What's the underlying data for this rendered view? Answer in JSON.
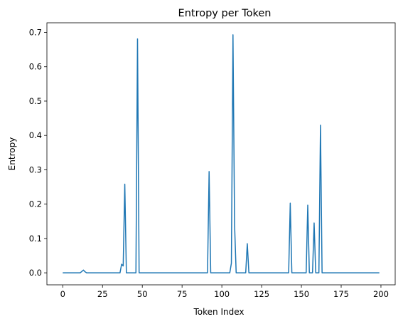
{
  "chart_data": {
    "type": "line",
    "title": "Entropy per Token",
    "xlabel": "Token Index",
    "ylabel": "Entropy",
    "xlim": [
      -9.95,
      208.95
    ],
    "ylim": [
      -0.035,
      0.728
    ],
    "xticks": [
      0,
      25,
      50,
      75,
      100,
      125,
      150,
      175,
      200
    ],
    "yticks": [
      0.0,
      0.1,
      0.2,
      0.3,
      0.4,
      0.5,
      0.6,
      0.7
    ],
    "ytick_labels": [
      "0.0",
      "0.1",
      "0.2",
      "0.3",
      "0.4",
      "0.5",
      "0.6",
      "0.7"
    ],
    "grid": false,
    "series": [
      {
        "color": "#1f77b4",
        "x_range": [
          0,
          199
        ],
        "baseline": 0.0,
        "nonzero": [
          [
            12,
            0.004
          ],
          [
            13,
            0.008
          ],
          [
            14,
            0.003
          ],
          [
            37,
            0.025
          ],
          [
            38,
            0.02
          ],
          [
            39,
            0.258
          ],
          [
            47,
            0.681
          ],
          [
            92,
            0.295
          ],
          [
            106,
            0.028
          ],
          [
            107,
            0.693
          ],
          [
            108,
            0.14
          ],
          [
            116,
            0.085
          ],
          [
            143,
            0.203
          ],
          [
            154,
            0.197
          ],
          [
            158,
            0.145
          ],
          [
            162,
            0.43
          ]
        ]
      }
    ]
  }
}
